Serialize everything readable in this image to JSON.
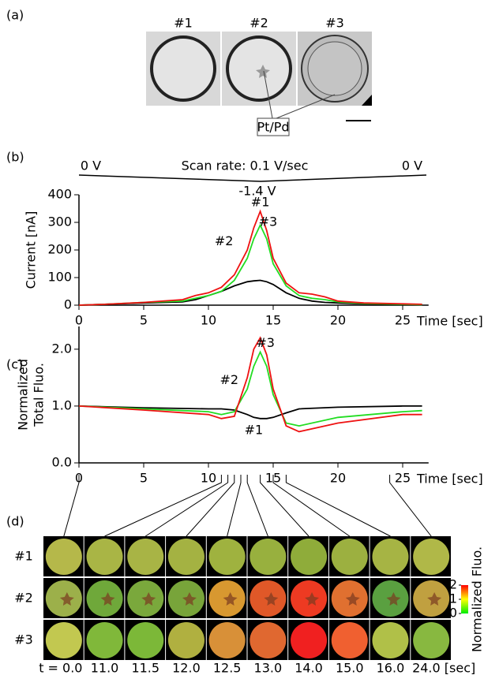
{
  "panel_labels": [
    "(a)",
    "(b)",
    "(c)",
    "(d)"
  ],
  "panel_a": {
    "images": [
      "#1",
      "#2",
      "#3"
    ],
    "callout": "Pt/Pd"
  },
  "chart_data": [
    {
      "type": "line",
      "voltage": {
        "start": "0 V",
        "title": "Scan rate: 0.1 V/sec",
        "end": "0 V",
        "min": "-1.4 V"
      },
      "y_label": "Current [nA]",
      "x_label": "Time [sec]",
      "x": [
        0,
        2,
        5,
        8,
        9,
        10,
        11,
        12,
        13,
        13.5,
        14,
        14.5,
        15,
        16,
        17,
        18,
        19,
        20,
        22,
        25,
        26.5
      ],
      "xlim": [
        0,
        27
      ],
      "xticks": [
        0,
        5,
        10,
        15,
        20,
        25
      ],
      "ylim": [
        0,
        400
      ],
      "yticks": [
        0,
        100,
        200,
        300,
        400
      ],
      "series": [
        {
          "name": "#1",
          "color": "#000000",
          "values": [
            0,
            3,
            8,
            12,
            20,
            35,
            50,
            70,
            85,
            88,
            90,
            85,
            75,
            45,
            25,
            15,
            10,
            8,
            5,
            3,
            2
          ]
        },
        {
          "name": "#2",
          "color": "#22dd22",
          "values": [
            0,
            3,
            10,
            15,
            25,
            35,
            50,
            90,
            170,
            240,
            290,
            240,
            150,
            70,
            35,
            25,
            20,
            12,
            6,
            3,
            2
          ]
        },
        {
          "name": "#3",
          "color": "#ee1111",
          "values": [
            0,
            3,
            10,
            20,
            35,
            45,
            65,
            110,
            200,
            280,
            340,
            270,
            170,
            80,
            45,
            40,
            30,
            15,
            8,
            5,
            3
          ]
        }
      ]
    },
    {
      "type": "line",
      "y_label": [
        "Normalized",
        "Total Fluo."
      ],
      "x_label": "Time [sec]",
      "x": [
        0,
        5,
        10,
        11,
        12,
        13,
        13.5,
        14,
        14.5,
        15,
        16,
        17,
        20,
        25,
        26.5
      ],
      "xlim": [
        0,
        27
      ],
      "xticks": [
        0,
        5,
        10,
        15,
        20,
        25
      ],
      "ylim": [
        0,
        2.4
      ],
      "yticks": [
        {
          "value": 0,
          "label": "0.0"
        },
        {
          "value": 1,
          "label": "1.0"
        },
        {
          "value": 2,
          "label": "2.0"
        }
      ],
      "series": [
        {
          "name": "#1",
          "color": "#000000",
          "values": [
            1.0,
            0.97,
            0.95,
            0.95,
            0.93,
            0.85,
            0.8,
            0.78,
            0.78,
            0.8,
            0.88,
            0.95,
            0.98,
            1.0,
            1.0
          ]
        },
        {
          "name": "#2",
          "color": "#22dd22",
          "values": [
            1.0,
            0.95,
            0.9,
            0.85,
            0.9,
            1.3,
            1.7,
            1.95,
            1.7,
            1.2,
            0.7,
            0.65,
            0.8,
            0.9,
            0.92
          ]
        },
        {
          "name": "#3",
          "color": "#ee1111",
          "values": [
            1.0,
            0.93,
            0.85,
            0.78,
            0.82,
            1.5,
            2.0,
            2.2,
            1.9,
            1.3,
            0.65,
            0.55,
            0.7,
            0.85,
            0.85
          ]
        }
      ]
    }
  ],
  "panel_d": {
    "times": [
      {
        "value": 0,
        "label": "t = 0.0"
      },
      {
        "value": 11,
        "label": "11.0"
      },
      {
        "value": 11.5,
        "label": "11.5"
      },
      {
        "value": 12,
        "label": "12.0"
      },
      {
        "value": 12.5,
        "label": "12.5"
      },
      {
        "value": 13,
        "label": "13.0"
      },
      {
        "value": 14,
        "label": "14.0"
      },
      {
        "value": 15,
        "label": "15.0"
      },
      {
        "value": 16,
        "label": "16.0"
      },
      {
        "value": 24,
        "label": "24.0 [sec]"
      }
    ],
    "rows": [
      {
        "label": "#1",
        "colors": [
          "#b5b84a",
          "#a9b545",
          "#a8b445",
          "#a4b242",
          "#9fb23f",
          "#98b03e",
          "#8fac3a",
          "#9cb040",
          "#a6b444",
          "#b0b848"
        ]
      },
      {
        "label": "#2",
        "colors": [
          "#9cb04a",
          "#6fa83a",
          "#7aa83c",
          "#78a43a",
          "#d89830",
          "#e05828",
          "#ee3a22",
          "#e07030",
          "#5aa040",
          "#c0a040"
        ]
      },
      {
        "label": "#3",
        "colors": [
          "#c2c850",
          "#80b83a",
          "#7cb838",
          "#b0b040",
          "#d89038",
          "#e06830",
          "#f02020",
          "#f06030",
          "#b0c048",
          "#88b840"
        ]
      }
    ],
    "colorbar": {
      "label": "Normalized Fluo.",
      "lim": [
        0,
        2
      ],
      "ticks": [
        0,
        1,
        2
      ]
    }
  }
}
